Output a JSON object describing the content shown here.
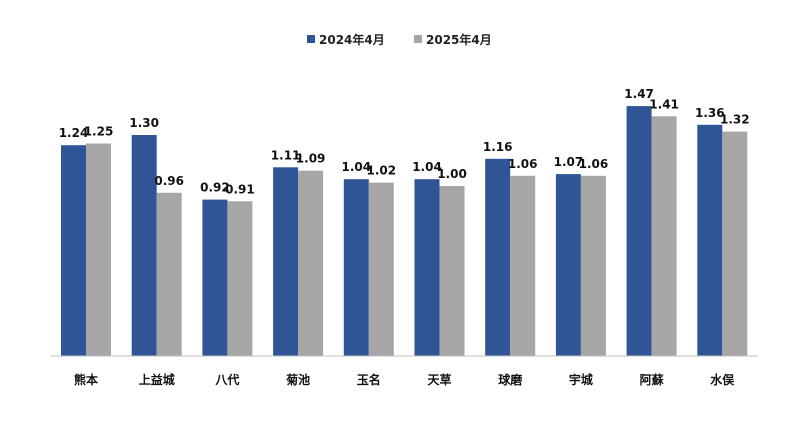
{
  "chart_data": {
    "type": "bar",
    "categories": [
      "熊本",
      "上益城",
      "八代",
      "菊池",
      "玉名",
      "天草",
      "球磨",
      "宇城",
      "阿蘇",
      "水俣"
    ],
    "series": [
      {
        "name": "2024年4月",
        "color": "#2f5597",
        "values": [
          1.24,
          1.3,
          0.92,
          1.11,
          1.04,
          1.04,
          1.16,
          1.07,
          1.47,
          1.36
        ]
      },
      {
        "name": "2025年4月",
        "color": "#a6a6a6",
        "values": [
          1.25,
          0.96,
          0.91,
          1.09,
          1.02,
          1.0,
          1.06,
          1.06,
          1.41,
          1.32
        ]
      }
    ],
    "value_labels": [
      [
        "1.24",
        "1.30",
        "0.92",
        "1.11",
        "1.04",
        "1.04",
        "1.16",
        "1.07",
        "1.47",
        "1.36"
      ],
      [
        "1.25",
        "0.96",
        "0.91",
        "1.09",
        "1.02",
        "1.00",
        "1.06",
        "1.06",
        "1.41",
        "1.32"
      ]
    ],
    "ylim": [
      0,
      1.6
    ],
    "legend_position": "top-center",
    "grid": false,
    "title": "",
    "xlabel": "",
    "ylabel": ""
  }
}
